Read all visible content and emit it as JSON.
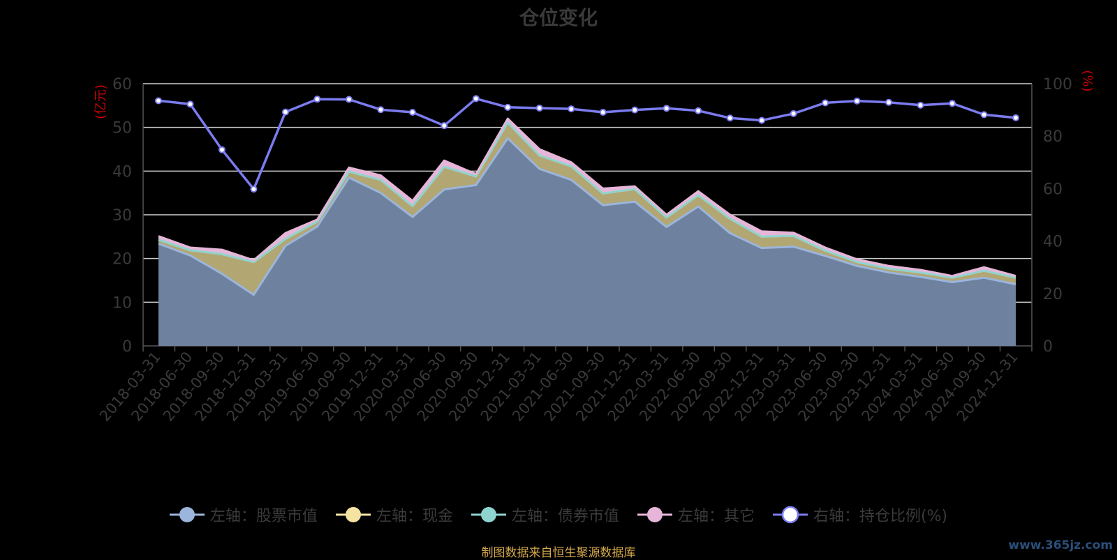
{
  "chart_data": {
    "type": "area",
    "title": "仓位变化",
    "y_left_label": "(亿元)",
    "y_right_label": "(%)",
    "y_left_range": [
      0,
      60
    ],
    "y_left_ticks": [
      "0",
      "10",
      "20",
      "30",
      "40",
      "50",
      "60"
    ],
    "y_right_range": [
      0,
      100
    ],
    "y_right_ticks": [
      "0",
      "20",
      "40",
      "60",
      "80",
      "100"
    ],
    "grid": true,
    "legend_position": "bottom",
    "categories": [
      "2018-03-31",
      "2018-06-30",
      "2018-09-30",
      "2018-12-31",
      "2019-03-31",
      "2019-06-30",
      "2019-09-30",
      "2019-12-31",
      "2020-03-31",
      "2020-06-30",
      "2020-09-30",
      "2020-12-31",
      "2021-03-31",
      "2021-06-30",
      "2021-09-30",
      "2021-12-31",
      "2022-03-31",
      "2022-06-30",
      "2022-09-30",
      "2022-12-31",
      "2023-03-31",
      "2023-06-30",
      "2023-09-30",
      "2023-12-31",
      "2024-03-31",
      "2024-06-30",
      "2024-09-30",
      "2024-12-31"
    ],
    "series": [
      {
        "name": "左轴：股票市值",
        "axis": "left",
        "color": "#9bb5dc",
        "fill": "#6e82a0",
        "values": [
          23.4,
          20.7,
          16.5,
          11.7,
          22.9,
          27.3,
          38.5,
          35.0,
          29.5,
          35.8,
          36.8,
          47.5,
          40.5,
          38.0,
          32.2,
          33.0,
          27.2,
          31.9,
          25.8,
          22.4,
          22.7,
          20.6,
          18.3,
          16.8,
          15.8,
          14.6,
          15.6,
          14.1
        ]
      },
      {
        "name": "左轴：现金",
        "axis": "left",
        "color": "#f5e3a1",
        "fill": "#b2a673",
        "values": [
          0.9,
          1.2,
          4.5,
          7.5,
          1.6,
          1.2,
          1.4,
          3.0,
          2.5,
          5.2,
          2.0,
          3.6,
          3.1,
          3.1,
          2.7,
          2.9,
          2.2,
          2.6,
          3.3,
          2.6,
          2.5,
          1.2,
          0.9,
          0.9,
          1.0,
          1.0,
          1.6,
          1.5
        ]
      },
      {
        "name": "左轴：债券市值",
        "axis": "left",
        "color": "#8fd3d0",
        "fill": "#8fd3d0",
        "values": [
          0,
          0,
          0,
          0,
          0,
          0,
          0,
          0,
          0,
          0,
          0,
          0,
          0,
          0,
          0,
          0,
          0,
          0,
          0,
          0,
          0,
          0,
          0,
          0,
          0,
          0,
          0,
          0
        ]
      },
      {
        "name": "左轴：其它",
        "axis": "left",
        "color": "#e6b5d8",
        "fill": "#e6b5d8",
        "values": [
          0.8,
          0.6,
          1.0,
          0.4,
          1.3,
          0.4,
          0.9,
          1.0,
          1.2,
          1.4,
          0.5,
          0.9,
          1.4,
          0.9,
          1.1,
          0.6,
          0.6,
          0.9,
          0.9,
          1.2,
          0.7,
          0.7,
          0.6,
          0.6,
          0.6,
          0.4,
          0.8,
          0.4
        ]
      },
      {
        "name": "右轴：持仓比例(%)",
        "axis": "right",
        "color": "#7b7cf0",
        "marker_fill": "#ffffff",
        "values": [
          93.5,
          92.2,
          74.8,
          59.8,
          89.2,
          94.1,
          94.0,
          90.1,
          89.1,
          84.0,
          94.3,
          91.0,
          90.7,
          90.4,
          89.1,
          90.0,
          90.6,
          89.7,
          86.9,
          86.0,
          88.6,
          92.7,
          93.4,
          92.9,
          91.8,
          92.5,
          88.2,
          87.0
        ]
      }
    ]
  },
  "footer": {
    "source": "制图数据来自恒生聚源数据库",
    "watermark": "www.365jz.com"
  }
}
